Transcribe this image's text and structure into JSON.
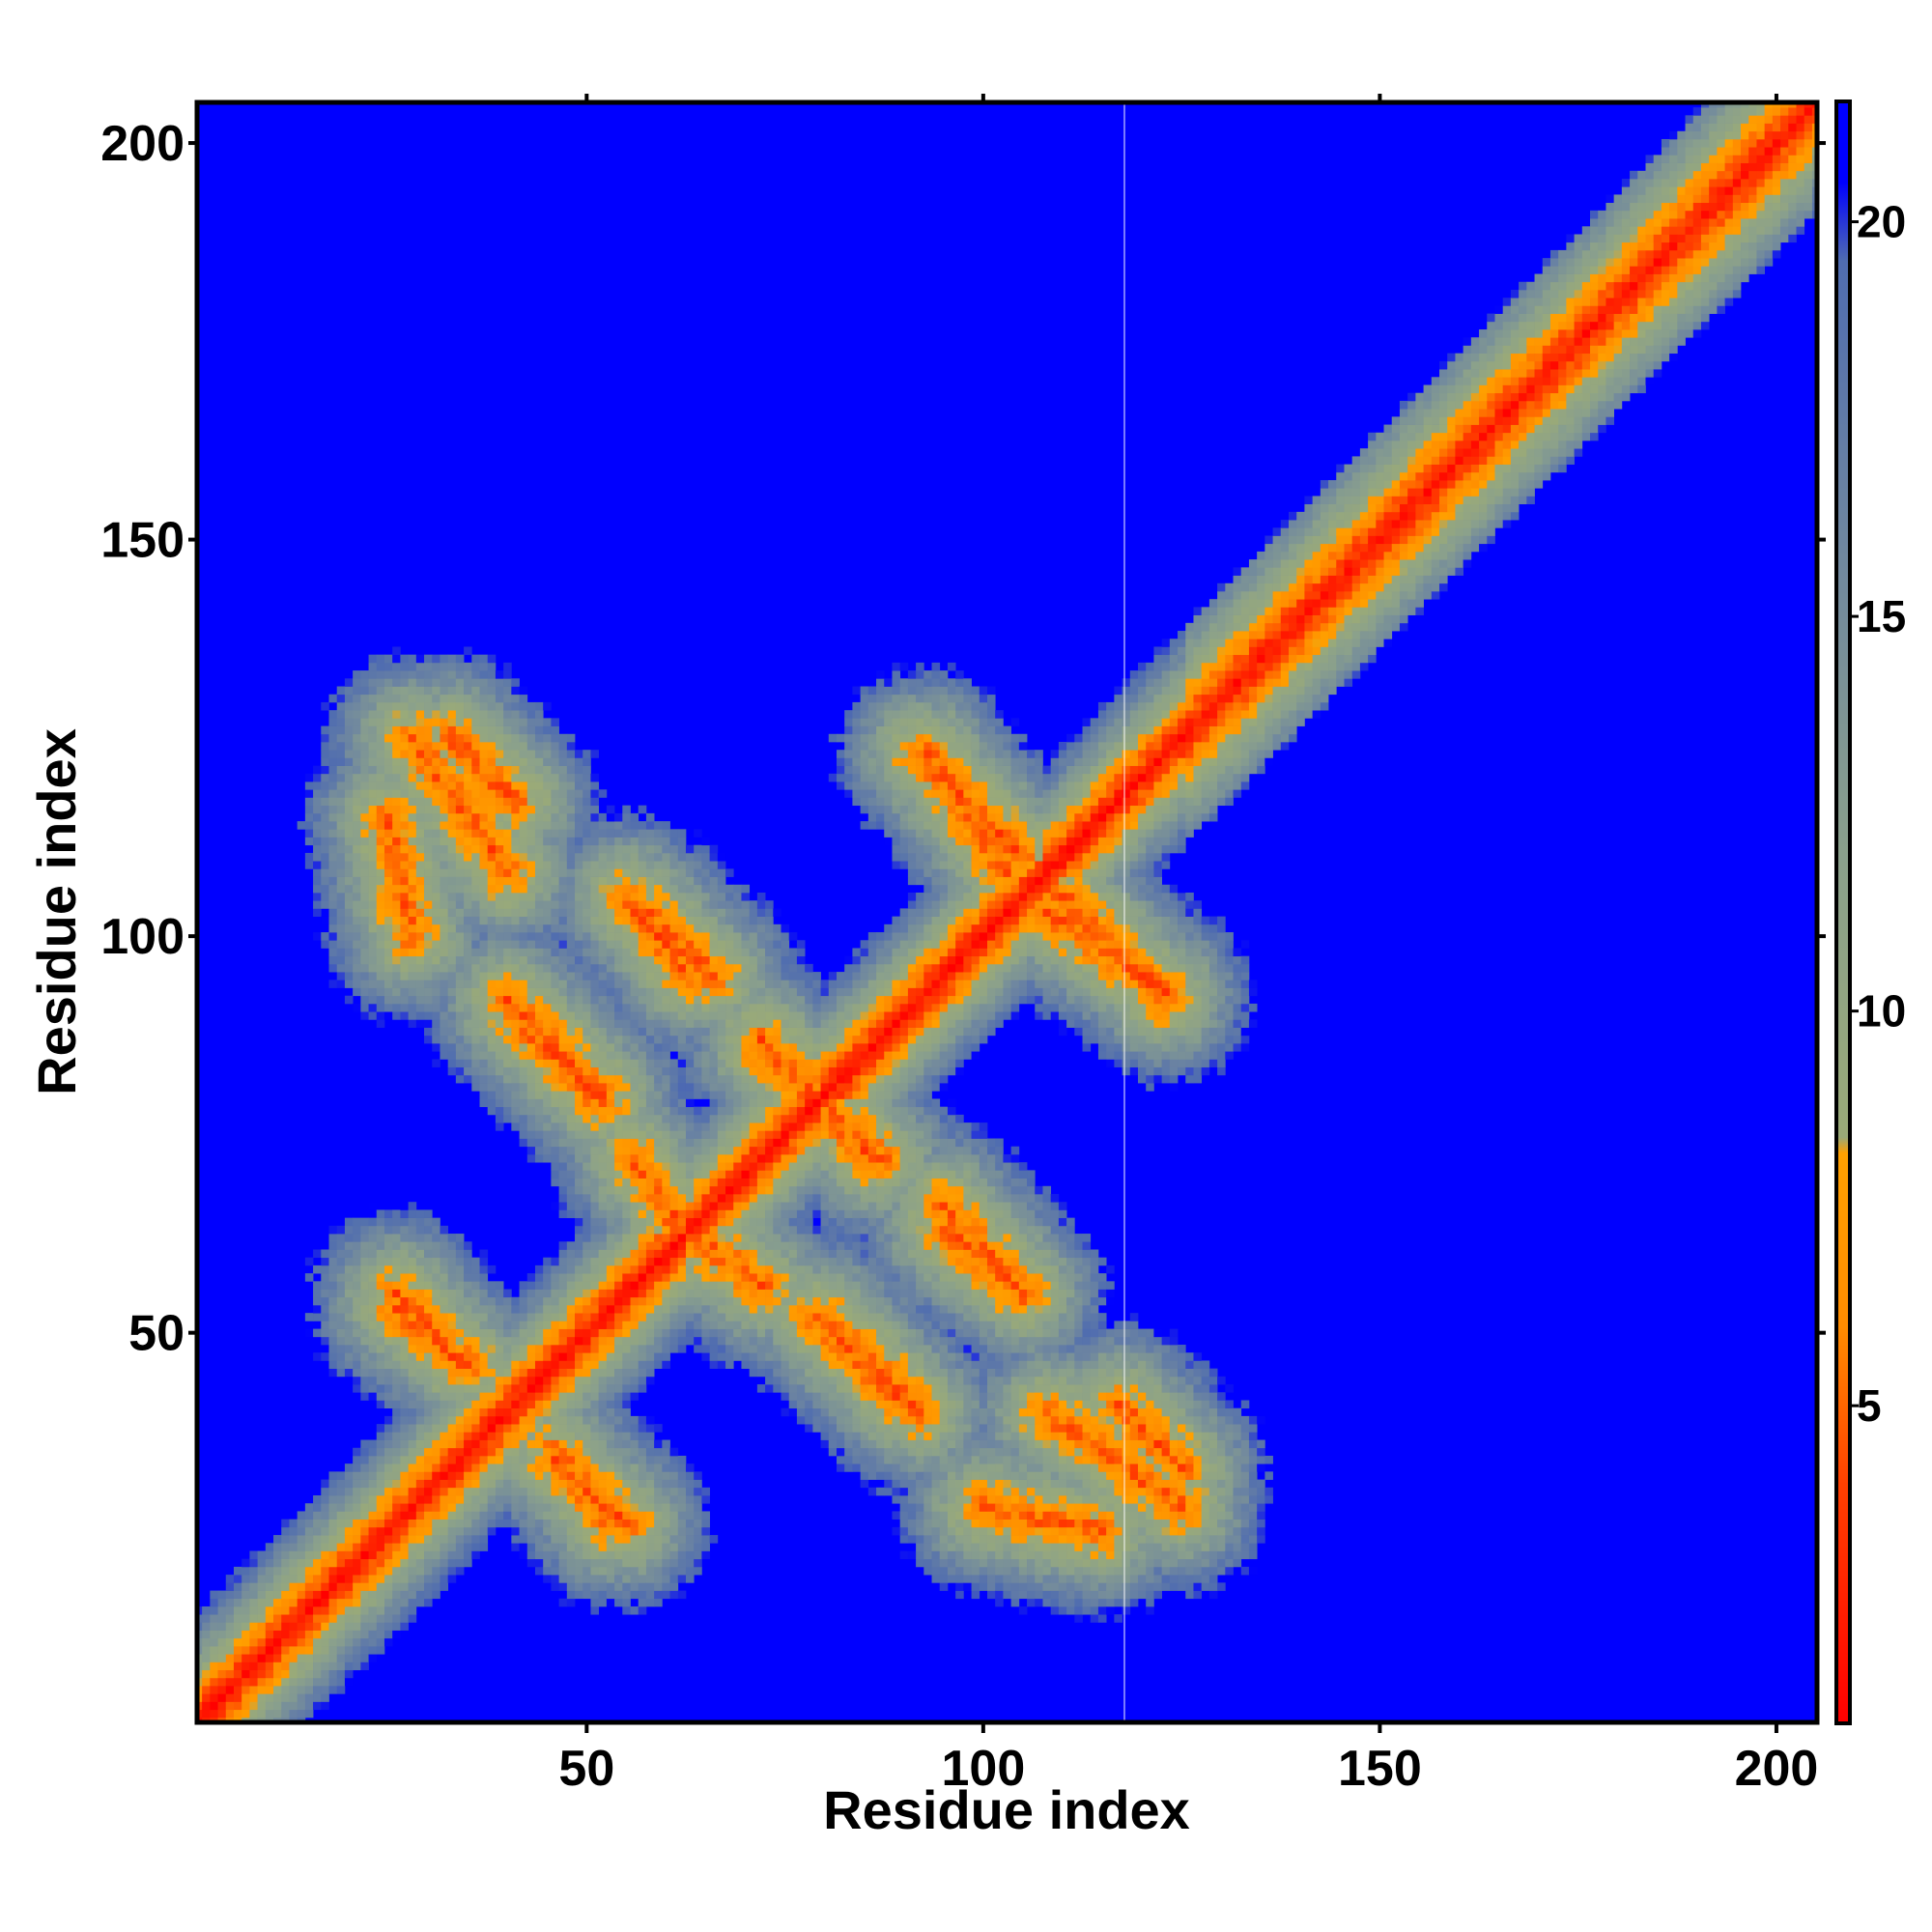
{
  "chart_data": {
    "type": "heatmap",
    "title": "",
    "xlabel": "Residue index",
    "ylabel": "Residue index",
    "xlim": [
      1,
      205
    ],
    "ylim": [
      1,
      205
    ],
    "x_ticks": [
      "50",
      "100",
      "150",
      "200"
    ],
    "y_ticks": [
      "50",
      "100",
      "150",
      "200"
    ],
    "colorbar": {
      "range": [
        1,
        21.5
      ],
      "ticks": [
        "5",
        "10",
        "15",
        "20"
      ],
      "stops": [
        {
          "value": 1,
          "color": "#ff0000"
        },
        {
          "value": 4,
          "color": "#ff4000"
        },
        {
          "value": 6,
          "color": "#ff8c00"
        },
        {
          "value": 8.2,
          "color": "#ffa000"
        },
        {
          "value": 8.4,
          "color": "#9aaa78"
        },
        {
          "value": 12,
          "color": "#8aa08c"
        },
        {
          "value": 16,
          "color": "#6e86a0"
        },
        {
          "value": 19.5,
          "color": "#4f6cb0"
        },
        {
          "value": 20.5,
          "color": "#0000ff"
        },
        {
          "value": 21.5,
          "color": "#0000ff"
        }
      ]
    },
    "background_color": "#0000ff",
    "helix_contacts": {
      "diagonal": {
        "from": 1,
        "to": 205
      },
      "cross_bands": [
        {
          "x": [
            28,
            40
          ],
          "y": [
            125,
            108
          ]
        },
        {
          "x": [
            55,
            63
          ],
          "y": [
            105,
            95
          ]
        },
        {
          "x": [
            40,
            52
          ],
          "y": [
            92,
            80
          ]
        },
        {
          "x": [
            72,
            86
          ],
          "y": [
            87,
            72
          ]
        },
        {
          "x": [
            92,
            105
          ],
          "y": [
            123,
            110
          ]
        },
        {
          "x": [
            108,
            123
          ],
          "y": [
            103,
            93
          ]
        },
        {
          "x": [
            95,
            105
          ],
          "y": [
            66,
            55
          ]
        },
        {
          "x": [
            79,
            90
          ],
          "y": [
            52,
            41
          ]
        },
        {
          "x": [
            46,
            53
          ],
          "y": [
            35,
            26
          ]
        },
        {
          "x": [
            26,
            34
          ],
          "y": [
            55,
            46
          ]
        },
        {
          "x": [
            61,
            72
          ],
          "y": [
            64,
            56
          ]
        },
        {
          "x": [
            117,
            125
          ],
          "y": [
            41,
            33
          ]
        },
        {
          "x": [
            100,
            115
          ],
          "y": [
            28,
            25
          ]
        }
      ]
    }
  }
}
